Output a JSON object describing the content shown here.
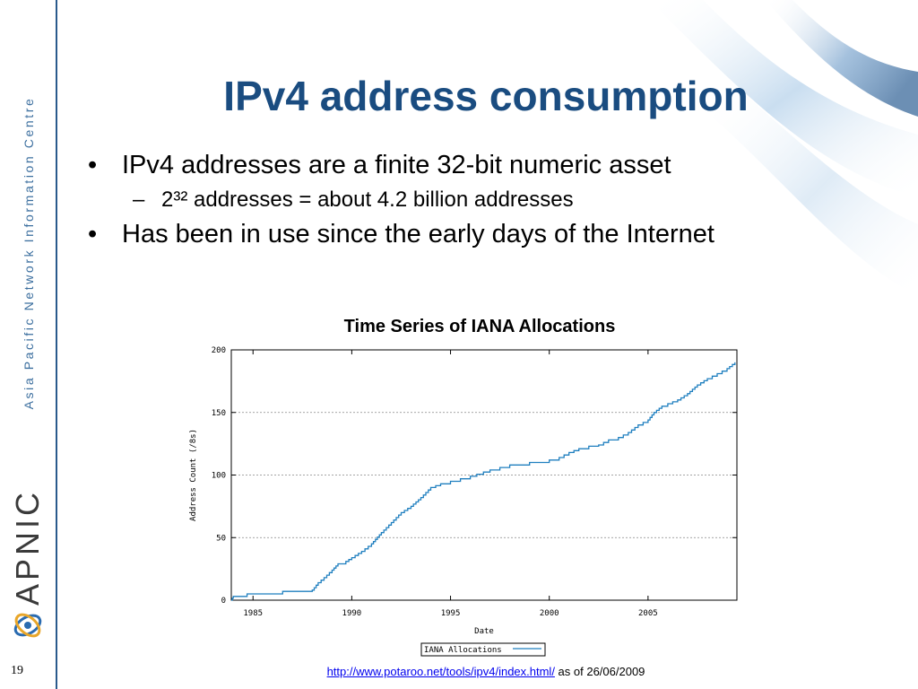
{
  "sidebar": {
    "org_name": "Asia Pacific Network Information Centre",
    "brand": "APNIC",
    "page_number": "19"
  },
  "slide": {
    "title": "IPv4 address consumption",
    "bullets": [
      {
        "level": 1,
        "text": "IPv4 addresses are a finite 32-bit numeric asset"
      },
      {
        "level": 2,
        "text": "2³² addresses = about 4.2 billion addresses"
      },
      {
        "level": 1,
        "text": "Has been in use since the early days of the Internet"
      }
    ]
  },
  "footer": {
    "link_text": "http://www.potaroo.net/tools/ipv4/index.html/",
    "suffix": " as of 26/06/2009"
  },
  "chart_data": {
    "type": "line",
    "title": "Time Series of IANA Allocations",
    "xlabel": "Date",
    "ylabel": "Address Count (/8s)",
    "xlim": [
      1983.9,
      2009.5
    ],
    "ylim": [
      0,
      200
    ],
    "x_ticks": [
      1985,
      1990,
      1995,
      2000,
      2005
    ],
    "y_ticks": [
      0,
      50,
      100,
      150,
      200
    ],
    "grid": true,
    "legend_position": "bottom-center",
    "series": [
      {
        "name": "IANA Allocations",
        "color": "#1f7fbf",
        "step": true,
        "x": [
          1983.9,
          1984.0,
          1984.7,
          1985.5,
          1986.5,
          1987.5,
          1988.0,
          1988.3,
          1988.6,
          1989.0,
          1989.3,
          1989.7,
          1990.0,
          1990.5,
          1991.0,
          1991.5,
          1992.0,
          1992.5,
          1993.0,
          1993.5,
          1994.0,
          1994.5,
          1995.0,
          1995.5,
          1996.0,
          1997.0,
          1998.0,
          1999.0,
          2000.0,
          2000.5,
          2001.0,
          2001.5,
          2002.0,
          2002.5,
          2003.0,
          2003.5,
          2004.0,
          2004.5,
          2005.0,
          2005.3,
          2005.7,
          2006.0,
          2006.5,
          2007.0,
          2007.5,
          2008.0,
          2008.5,
          2009.0,
          2009.4
        ],
        "y": [
          0,
          3,
          5,
          5,
          7,
          7,
          8,
          14,
          18,
          24,
          29,
          31,
          34,
          39,
          45,
          54,
          62,
          70,
          75,
          82,
          90,
          93,
          95,
          97,
          99,
          104,
          108,
          110,
          112,
          114,
          118,
          121,
          123,
          124,
          128,
          130,
          134,
          140,
          144,
          150,
          155,
          157,
          160,
          165,
          172,
          177,
          181,
          185,
          190
        ]
      }
    ]
  },
  "colors": {
    "title": "#1a4c80",
    "sidebar_line": "#2a5a8c",
    "org_text": "#3c6f9f",
    "series": "#1f7fbf"
  }
}
